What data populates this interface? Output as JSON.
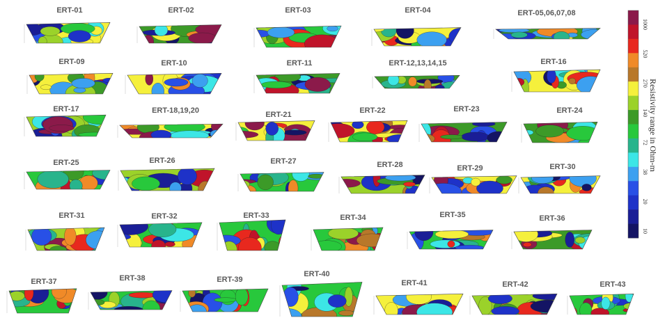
{
  "profiles": [
    {
      "label": "ERT-01"
    },
    {
      "label": "ERT-02"
    },
    {
      "label": "ERT-03"
    },
    {
      "label": "ERT-04"
    },
    {
      "label": "ERT-05,06,07,08"
    },
    {
      "label": "ERT-09"
    },
    {
      "label": "ERT-10"
    },
    {
      "label": "ERT-11"
    },
    {
      "label": "ERT-12,13,14,15"
    },
    {
      "label": "ERT-16"
    },
    {
      "label": "ERT-17"
    },
    {
      "label": "ERT-18,19,20"
    },
    {
      "label": "ERT-21"
    },
    {
      "label": "ERT-22"
    },
    {
      "label": "ERT-23"
    },
    {
      "label": "ERT-24"
    },
    {
      "label": "ERT-25"
    },
    {
      "label": "ERT-26"
    },
    {
      "label": "ERT-27"
    },
    {
      "label": "ERT-28"
    },
    {
      "label": "ERT-29"
    },
    {
      "label": "ERT-30"
    },
    {
      "label": "ERT-31"
    },
    {
      "label": "ERT-32"
    },
    {
      "label": "ERT-33"
    },
    {
      "label": "ERT-34"
    },
    {
      "label": "ERT-35"
    },
    {
      "label": "ERT-36"
    },
    {
      "label": "ERT-37"
    },
    {
      "label": "ERT-38"
    },
    {
      "label": "ERT-39"
    },
    {
      "label": "ERT-40"
    },
    {
      "label": "ERT-41"
    },
    {
      "label": "ERT-42"
    },
    {
      "label": "ERT-43"
    }
  ],
  "colorbar": {
    "title": "Resistivity range in Ohm-m",
    "ticks": [
      1000,
      520,
      270,
      140,
      72,
      38,
      20,
      10
    ],
    "colors": [
      "#8b1a4a",
      "#c0142a",
      "#e8281e",
      "#f08a28",
      "#b8782a",
      "#f5f03c",
      "#9bd22a",
      "#3c9a28",
      "#28c83c",
      "#28b48c",
      "#3ce6e6",
      "#3ca0f0",
      "#2850e6",
      "#1e32c8",
      "#1a1e96",
      "#141464"
    ]
  }
}
